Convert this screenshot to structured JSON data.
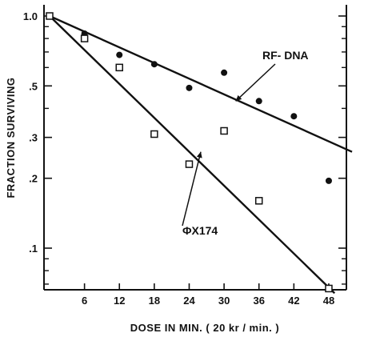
{
  "chart_data": {
    "type": "scatter",
    "title": "",
    "xlabel": "DOSE IN MIN. ( 20 kr / min. )",
    "ylabel": "FRACTION SURVIVING",
    "y_scale": "log",
    "xlim": [
      0,
      52
    ],
    "ylim": [
      0.06,
      1.05
    ],
    "x_ticks": [
      {
        "value": 6,
        "label": "6"
      },
      {
        "value": 12,
        "label": "12"
      },
      {
        "value": 18,
        "label": "18"
      },
      {
        "value": 24,
        "label": "24"
      },
      {
        "value": 30,
        "label": "30"
      },
      {
        "value": 36,
        "label": "36"
      },
      {
        "value": 42,
        "label": "42"
      },
      {
        "value": 48,
        "label": "48"
      }
    ],
    "y_ticks": [
      {
        "value": 1.0,
        "label": "1.0"
      },
      {
        "value": 0.5,
        "label": ".5"
      },
      {
        "value": 0.3,
        "label": ".3"
      },
      {
        "value": 0.2,
        "label": ".2"
      },
      {
        "value": 0.1,
        "label": ".1"
      }
    ],
    "grid": false,
    "series": [
      {
        "name": "RF- DNA",
        "marker": "filled-circle",
        "x": [
          0,
          6,
          12,
          18,
          24,
          30,
          36,
          42,
          48
        ],
        "y": [
          1.0,
          0.84,
          0.68,
          0.62,
          0.49,
          0.57,
          0.43,
          0.37,
          0.195
        ],
        "fit_line": {
          "x": [
            0,
            52
          ],
          "y": [
            1.0,
            0.26
          ]
        }
      },
      {
        "name": "ΦX174",
        "marker": "open-square",
        "x": [
          0,
          6,
          12,
          18,
          24,
          30,
          36,
          48
        ],
        "y": [
          1.0,
          0.8,
          0.6,
          0.31,
          0.23,
          0.32,
          0.16,
          0.067
        ],
        "fit_line": {
          "x": [
            0,
            49
          ],
          "y": [
            1.0,
            0.064
          ]
        }
      }
    ],
    "annotations": [
      {
        "text": "RF- DNA",
        "target_series": "RF- DNA",
        "arrow_to": {
          "x": 32,
          "y": 0.43
        }
      },
      {
        "text": "ΦX174",
        "target_series": "ΦX174",
        "arrow_to": {
          "x": 26,
          "y": 0.26
        }
      }
    ]
  }
}
